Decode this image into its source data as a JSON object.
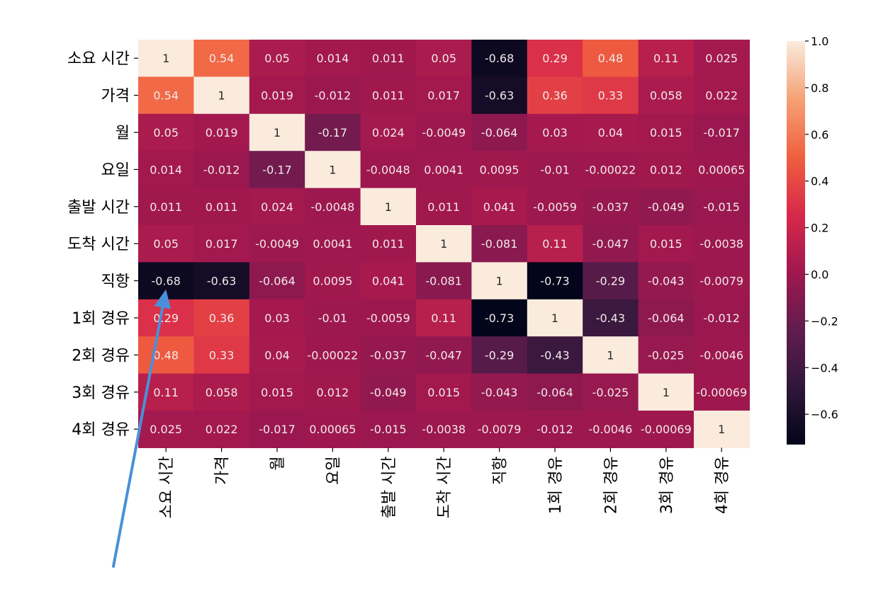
{
  "chart_data": {
    "type": "heatmap",
    "labels": [
      "소요 시간",
      "가격",
      "월",
      "요일",
      "출발 시간",
      "도착 시간",
      "직항",
      "1회 경유",
      "2회 경유",
      "3회 경유",
      "4회 경유"
    ],
    "matrix": [
      [
        1,
        0.54,
        0.05,
        0.014,
        0.011,
        0.05,
        -0.68,
        0.29,
        0.48,
        0.11,
        0.025
      ],
      [
        0.54,
        1,
        0.019,
        -0.012,
        0.011,
        0.017,
        -0.63,
        0.36,
        0.33,
        0.058,
        0.022
      ],
      [
        0.05,
        0.019,
        1,
        -0.17,
        0.024,
        -0.0049,
        -0.064,
        0.03,
        0.04,
        0.015,
        -0.017
      ],
      [
        0.014,
        -0.012,
        -0.17,
        1,
        -0.0048,
        0.0041,
        0.0095,
        -0.01,
        -0.00022,
        0.012,
        0.00065
      ],
      [
        0.011,
        0.011,
        0.024,
        -0.0048,
        1,
        0.011,
        0.041,
        -0.0059,
        -0.037,
        -0.049,
        -0.015
      ],
      [
        0.05,
        0.017,
        -0.0049,
        0.0041,
        0.011,
        1,
        -0.081,
        0.11,
        -0.047,
        0.015,
        -0.0038
      ],
      [
        -0.68,
        -0.63,
        -0.064,
        0.0095,
        0.041,
        -0.081,
        1,
        -0.73,
        -0.29,
        -0.043,
        -0.0079
      ],
      [
        0.29,
        0.36,
        0.03,
        -0.01,
        -0.0059,
        0.11,
        -0.73,
        1,
        -0.43,
        -0.064,
        -0.012
      ],
      [
        0.48,
        0.33,
        0.04,
        -0.00022,
        -0.037,
        -0.047,
        -0.29,
        -0.43,
        1,
        -0.025,
        -0.0046
      ],
      [
        0.11,
        0.058,
        0.015,
        0.012,
        -0.049,
        0.015,
        -0.043,
        -0.064,
        -0.025,
        1,
        -0.00069
      ],
      [
        0.025,
        0.022,
        -0.017,
        0.00065,
        -0.015,
        -0.0038,
        -0.0079,
        -0.012,
        -0.0046,
        -0.00069,
        1
      ]
    ],
    "value_labels": [
      [
        "1",
        "0.54",
        "0.05",
        "0.014",
        "0.011",
        "0.05",
        "-0.68",
        "0.29",
        "0.48",
        "0.11",
        "0.025"
      ],
      [
        "0.54",
        "1",
        "0.019",
        "-0.012",
        "0.011",
        "0.017",
        "-0.63",
        "0.36",
        "0.33",
        "0.058",
        "0.022"
      ],
      [
        "0.05",
        "0.019",
        "1",
        "-0.17",
        "0.024",
        "-0.0049",
        "-0.064",
        "0.03",
        "0.04",
        "0.015",
        "-0.017"
      ],
      [
        "0.014",
        "-0.012",
        "-0.17",
        "1",
        "-0.0048",
        "0.0041",
        "0.0095",
        "-0.01",
        "-0.00022",
        "0.012",
        "0.00065"
      ],
      [
        "0.011",
        "0.011",
        "0.024",
        "-0.0048",
        "1",
        "0.011",
        "0.041",
        "-0.0059",
        "-0.037",
        "-0.049",
        "-0.015"
      ],
      [
        "0.05",
        "0.017",
        "-0.0049",
        "0.0041",
        "0.011",
        "1",
        "-0.081",
        "0.11",
        "-0.047",
        "0.015",
        "-0.0038"
      ],
      [
        "-0.68",
        "-0.63",
        "-0.064",
        "0.0095",
        "0.041",
        "-0.081",
        "1",
        "-0.73",
        "-0.29",
        "-0.043",
        "-0.0079"
      ],
      [
        "0.29",
        "0.36",
        "0.03",
        "-0.01",
        "-0.0059",
        "0.11",
        "-0.73",
        "1",
        "-0.43",
        "-0.064",
        "-0.012"
      ],
      [
        "0.48",
        "0.33",
        "0.04",
        "-0.00022",
        "-0.037",
        "-0.047",
        "-0.29",
        "-0.43",
        "1",
        "-0.025",
        "-0.0046"
      ],
      [
        "0.11",
        "0.058",
        "0.015",
        "0.012",
        "-0.049",
        "0.015",
        "-0.043",
        "-0.064",
        "-0.025",
        "1",
        "-0.00069"
      ],
      [
        "0.025",
        "0.022",
        "-0.017",
        "0.00065",
        "-0.015",
        "-0.0038",
        "-0.0079",
        "-0.012",
        "-0.0046",
        "-0.00069",
        "1"
      ]
    ],
    "colorbar": {
      "min": -0.73,
      "max": 1.0,
      "ticks": [
        1.0,
        0.8,
        0.6,
        0.4,
        0.2,
        0.0,
        -0.2,
        -0.4,
        -0.6
      ],
      "tick_labels": [
        "1.0",
        "0.8",
        "0.6",
        "0.4",
        "0.2",
        "0.0",
        "−0.2",
        "−0.4",
        "−0.6"
      ],
      "colormap": "rocket",
      "colormap_stops": [
        "#03051a",
        "#30173a",
        "#621c4e",
        "#a1184f",
        "#d8294a",
        "#f0603f",
        "#f5a276",
        "#faebdd"
      ]
    },
    "annotation": {
      "type": "arrow",
      "color": "#4a90d9",
      "points_to": [
        "1회 경유",
        "소요 시간"
      ]
    }
  }
}
